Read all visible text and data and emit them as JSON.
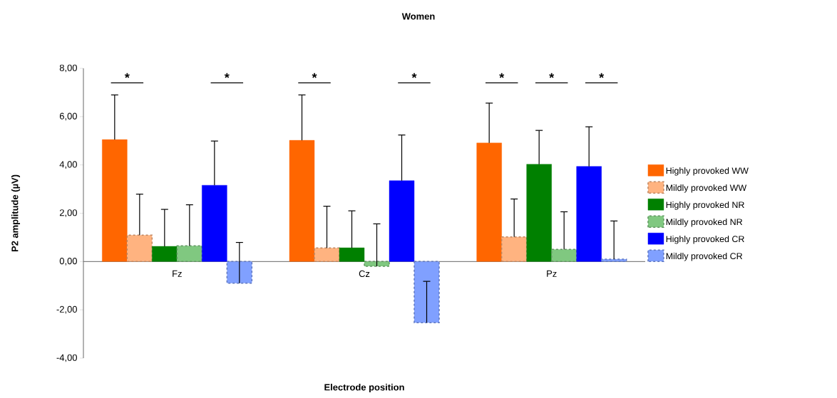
{
  "chart_data": {
    "type": "bar",
    "title": "Women",
    "xlabel": "Electrode position",
    "ylabel": "P2 amplitude (µV)",
    "categories": [
      "Fz",
      "Cz",
      "Pz"
    ],
    "series": [
      {
        "name": "Highly provoked WW",
        "color": "#ff6600",
        "values": [
          5.05,
          5.02,
          4.91
        ],
        "errors": [
          [
            5.05,
            6.9
          ],
          [
            5.02,
            6.9
          ],
          [
            4.91,
            6.56
          ]
        ]
      },
      {
        "name": "Mildly provoked WW",
        "color": "#ffb380",
        "values": [
          1.09,
          0.56,
          1.02
        ],
        "errors": [
          [
            1.09,
            2.79
          ],
          [
            0.56,
            2.29
          ],
          [
            1.02,
            2.59
          ]
        ]
      },
      {
        "name": "Highly provoked NR",
        "color": "#008000",
        "values": [
          0.63,
          0.57,
          4.03
        ],
        "errors": [
          [
            0.63,
            2.16
          ],
          [
            0.57,
            2.1
          ],
          [
            4.03,
            5.43
          ]
        ]
      },
      {
        "name": "Mildly provoked NR",
        "color": "#80c880",
        "values": [
          0.65,
          -0.2,
          0.5
        ],
        "errors": [
          [
            0.65,
            2.35
          ],
          [
            -0.2,
            1.56
          ],
          [
            0.5,
            2.06
          ]
        ]
      },
      {
        "name": "Highly provoked CR",
        "color": "#0000ff",
        "values": [
          3.16,
          3.35,
          3.94
        ],
        "errors": [
          [
            3.16,
            4.99
          ],
          [
            3.35,
            5.24
          ],
          [
            3.94,
            5.58
          ]
        ]
      },
      {
        "name": "Mildly provoked CR",
        "color": "#80a0ff",
        "values": [
          -0.9,
          -2.53,
          0.1
        ],
        "errors": [
          [
            -0.9,
            0.79
          ],
          [
            -2.53,
            -0.82
          ],
          [
            0.1,
            1.68
          ]
        ]
      }
    ],
    "ylim": [
      -4,
      8
    ],
    "yticks": [
      {
        "value": -4,
        "label": "-4,00"
      },
      {
        "value": -2,
        "label": "-2,00"
      },
      {
        "value": 0,
        "label": "0,00"
      },
      {
        "value": 2,
        "label": "2,00"
      },
      {
        "value": 4,
        "label": "4,00"
      },
      {
        "value": 6,
        "label": "6,00"
      },
      {
        "value": 8,
        "label": "8,00"
      }
    ],
    "legend": "right",
    "annotations": [
      "*",
      "*",
      "*",
      "*",
      "*",
      "*",
      "*"
    ]
  }
}
